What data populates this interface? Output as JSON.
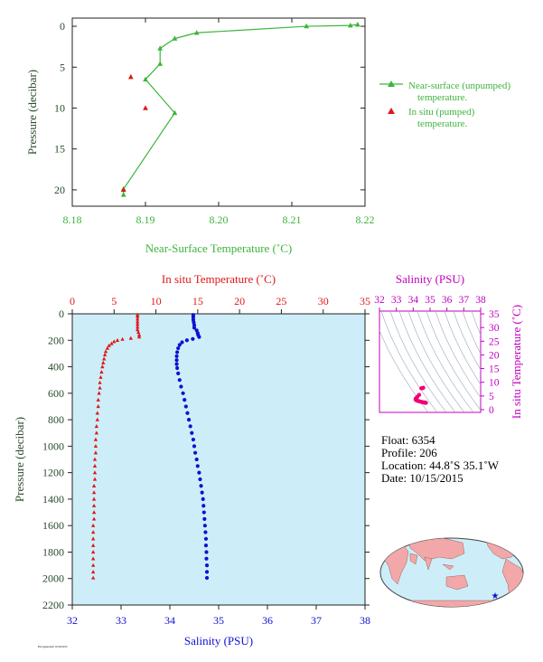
{
  "colors": {
    "green": "#3cb43c",
    "red": "#e01818",
    "blue": "#1010d0",
    "magenta": "#c000c0",
    "pink": "#f00078",
    "axis_text_dark": "#2a4a2a",
    "plot_bg": "#cdeef8",
    "ts_contour": "#9aa8b8",
    "land": "#f2a8a8",
    "ocean": "#cdeef8",
    "star": "#1010d0"
  },
  "chart_data": [
    {
      "id": "top",
      "type": "line",
      "xlabel": "Near-Surface Temperature (˚C)",
      "ylabel": "Pressure (decibar)",
      "xlim": [
        8.18,
        8.22
      ],
      "ylim": [
        22,
        -1
      ],
      "xticks": [
        "8.18",
        "8.19",
        "8.20",
        "8.21",
        "8.22"
      ],
      "xtick_values": [
        8.18,
        8.19,
        8.2,
        8.21,
        8.22
      ],
      "yticks": [
        "0",
        "5",
        "10",
        "15",
        "20"
      ],
      "ytick_values": [
        0,
        5,
        10,
        15,
        20
      ],
      "series": [
        {
          "name": "Near-surface (unpumped) temperature.",
          "marker": "triangle",
          "connected": true,
          "x": [
            8.219,
            8.218,
            8.212,
            8.197,
            8.194,
            8.192,
            8.192,
            8.19,
            8.194,
            8.187,
            8.187
          ],
          "y": [
            -0.2,
            -0.1,
            0.0,
            0.8,
            1.5,
            2.7,
            4.6,
            6.5,
            10.6,
            19.9,
            20.6
          ]
        },
        {
          "name": "In situ (pumped) temperature.",
          "marker": "triangle",
          "connected": false,
          "x": [
            8.188,
            8.19,
            8.187
          ],
          "y": [
            6.2,
            10.0,
            20.0
          ]
        }
      ],
      "legend": {
        "position": "right",
        "entries": [
          [
            "Near-surface (unpumped)",
            "temperature."
          ],
          [
            "In situ (pumped)",
            "temperature."
          ]
        ]
      }
    },
    {
      "id": "profile",
      "type": "scatter",
      "top_axis_label": "In situ Temperature (˚C)",
      "bottom_axis_label": "Salinity (PSU)",
      "ylabel": "Pressure (decibar)",
      "temperature_lim": [
        0,
        35
      ],
      "temperature_ticks": [
        "0",
        "5",
        "10",
        "15",
        "20",
        "25",
        "30",
        "35"
      ],
      "temperature_tick_values": [
        0,
        5,
        10,
        15,
        20,
        25,
        30,
        35
      ],
      "salinity_lim": [
        32,
        38
      ],
      "salinity_ticks": [
        "32",
        "33",
        "34",
        "35",
        "36",
        "37",
        "38"
      ],
      "salinity_tick_values": [
        32,
        33,
        34,
        35,
        36,
        37,
        38
      ],
      "pressure_lim": [
        0,
        2200
      ],
      "pressure_ticks": [
        "0",
        "200",
        "400",
        "600",
        "800",
        "1000",
        "1200",
        "1400",
        "1600",
        "1800",
        "2000",
        "2200"
      ],
      "pressure_tick_values": [
        0,
        200,
        400,
        600,
        800,
        1000,
        1200,
        1400,
        1600,
        1800,
        2000,
        2200
      ],
      "temperature_profile": [
        [
          8,
          7.8
        ],
        [
          20,
          7.8
        ],
        [
          40,
          7.8
        ],
        [
          60,
          7.8
        ],
        [
          80,
          7.8
        ],
        [
          100,
          7.8
        ],
        [
          120,
          7.8
        ],
        [
          140,
          7.9
        ],
        [
          160,
          8.0
        ],
        [
          175,
          8.0
        ],
        [
          185,
          7.0
        ],
        [
          192,
          6.0
        ],
        [
          200,
          5.4
        ],
        [
          210,
          5.0
        ],
        [
          225,
          4.7
        ],
        [
          240,
          4.4
        ],
        [
          260,
          4.2
        ],
        [
          285,
          4.0
        ],
        [
          310,
          3.9
        ],
        [
          340,
          3.8
        ],
        [
          370,
          3.7
        ],
        [
          400,
          3.6
        ],
        [
          440,
          3.5
        ],
        [
          480,
          3.4
        ],
        [
          520,
          3.3
        ],
        [
          560,
          3.3
        ],
        [
          600,
          3.2
        ],
        [
          650,
          3.1
        ],
        [
          700,
          3.1
        ],
        [
          750,
          3.0
        ],
        [
          800,
          3.0
        ],
        [
          850,
          2.9
        ],
        [
          900,
          2.9
        ],
        [
          950,
          2.8
        ],
        [
          1000,
          2.8
        ],
        [
          1050,
          2.8
        ],
        [
          1100,
          2.7
        ],
        [
          1150,
          2.7
        ],
        [
          1200,
          2.7
        ],
        [
          1250,
          2.7
        ],
        [
          1300,
          2.6
        ],
        [
          1350,
          2.6
        ],
        [
          1400,
          2.6
        ],
        [
          1450,
          2.6
        ],
        [
          1500,
          2.6
        ],
        [
          1550,
          2.6
        ],
        [
          1600,
          2.5
        ],
        [
          1650,
          2.5
        ],
        [
          1700,
          2.5
        ],
        [
          1750,
          2.5
        ],
        [
          1800,
          2.5
        ],
        [
          1850,
          2.5
        ],
        [
          1900,
          2.5
        ],
        [
          1950,
          2.5
        ],
        [
          1995,
          2.5
        ]
      ],
      "salinity_profile": [
        [
          8,
          34.48
        ],
        [
          25,
          34.48
        ],
        [
          45,
          34.48
        ],
        [
          65,
          34.49
        ],
        [
          85,
          34.5
        ],
        [
          105,
          34.5
        ],
        [
          125,
          34.55
        ],
        [
          145,
          34.57
        ],
        [
          160,
          34.58
        ],
        [
          175,
          34.6
        ],
        [
          190,
          34.47
        ],
        [
          200,
          34.35
        ],
        [
          215,
          34.25
        ],
        [
          235,
          34.2
        ],
        [
          260,
          34.17
        ],
        [
          290,
          34.15
        ],
        [
          320,
          34.14
        ],
        [
          350,
          34.14
        ],
        [
          380,
          34.14
        ],
        [
          410,
          34.15
        ],
        [
          450,
          34.17
        ],
        [
          500,
          34.2
        ],
        [
          550,
          34.23
        ],
        [
          600,
          34.27
        ],
        [
          650,
          34.3
        ],
        [
          700,
          34.33
        ],
        [
          750,
          34.36
        ],
        [
          800,
          34.39
        ],
        [
          850,
          34.42
        ],
        [
          900,
          34.45
        ],
        [
          950,
          34.48
        ],
        [
          1000,
          34.5
        ],
        [
          1050,
          34.52
        ],
        [
          1100,
          34.55
        ],
        [
          1150,
          34.57
        ],
        [
          1200,
          34.6
        ],
        [
          1250,
          34.62
        ],
        [
          1300,
          34.64
        ],
        [
          1350,
          34.66
        ],
        [
          1400,
          34.68
        ],
        [
          1450,
          34.69
        ],
        [
          1500,
          34.7
        ],
        [
          1550,
          34.71
        ],
        [
          1600,
          34.72
        ],
        [
          1650,
          34.73
        ],
        [
          1700,
          34.74
        ],
        [
          1750,
          34.74
        ],
        [
          1800,
          34.75
        ],
        [
          1850,
          34.75
        ],
        [
          1900,
          34.76
        ],
        [
          1950,
          34.76
        ],
        [
          1995,
          34.76
        ]
      ]
    },
    {
      "id": "ts",
      "type": "scatter",
      "top_axis_label": "Salinity (PSU)",
      "right_axis_label": "In situ Temperature (˚C)",
      "salinity_lim": [
        32,
        38
      ],
      "salinity_ticks": [
        "32",
        "33",
        "34",
        "35",
        "36",
        "37",
        "38"
      ],
      "salinity_tick_values": [
        32,
        33,
        34,
        35,
        36,
        37,
        38
      ],
      "temperature_lim": [
        -1,
        36
      ],
      "temperature_ticks": [
        "0",
        "5",
        "10",
        "15",
        "20",
        "25",
        "30",
        "35"
      ],
      "temperature_tick_values": [
        0,
        5,
        10,
        15,
        20,
        25,
        30,
        35
      ],
      "points": [
        [
          34.6,
          8.0
        ],
        [
          34.55,
          7.8
        ],
        [
          34.5,
          7.8
        ],
        [
          34.48,
          7.8
        ],
        [
          34.35,
          5.4
        ],
        [
          34.25,
          4.7
        ],
        [
          34.2,
          4.4
        ],
        [
          34.15,
          4.0
        ],
        [
          34.14,
          3.8
        ],
        [
          34.15,
          3.6
        ],
        [
          34.17,
          3.5
        ],
        [
          34.2,
          3.4
        ],
        [
          34.27,
          3.2
        ],
        [
          34.33,
          3.1
        ],
        [
          34.39,
          3.0
        ],
        [
          34.45,
          2.9
        ],
        [
          34.5,
          2.8
        ],
        [
          34.55,
          2.7
        ],
        [
          34.6,
          2.7
        ],
        [
          34.64,
          2.6
        ],
        [
          34.68,
          2.6
        ],
        [
          34.7,
          2.6
        ],
        [
          34.72,
          2.5
        ],
        [
          34.74,
          2.5
        ],
        [
          34.76,
          2.5
        ]
      ]
    }
  ],
  "float_info": {
    "float": "Float:  6354",
    "profile": "Profile:  206",
    "location": "Location:  44.8˚S  35.1˚W",
    "date": "Date:  10/15/2015"
  },
  "map": {
    "marker_icon": "star-icon",
    "float_lon": -35.1,
    "float_lat": -44.8
  },
  "footer_stamp": "Plot generated: 10/16/2015"
}
